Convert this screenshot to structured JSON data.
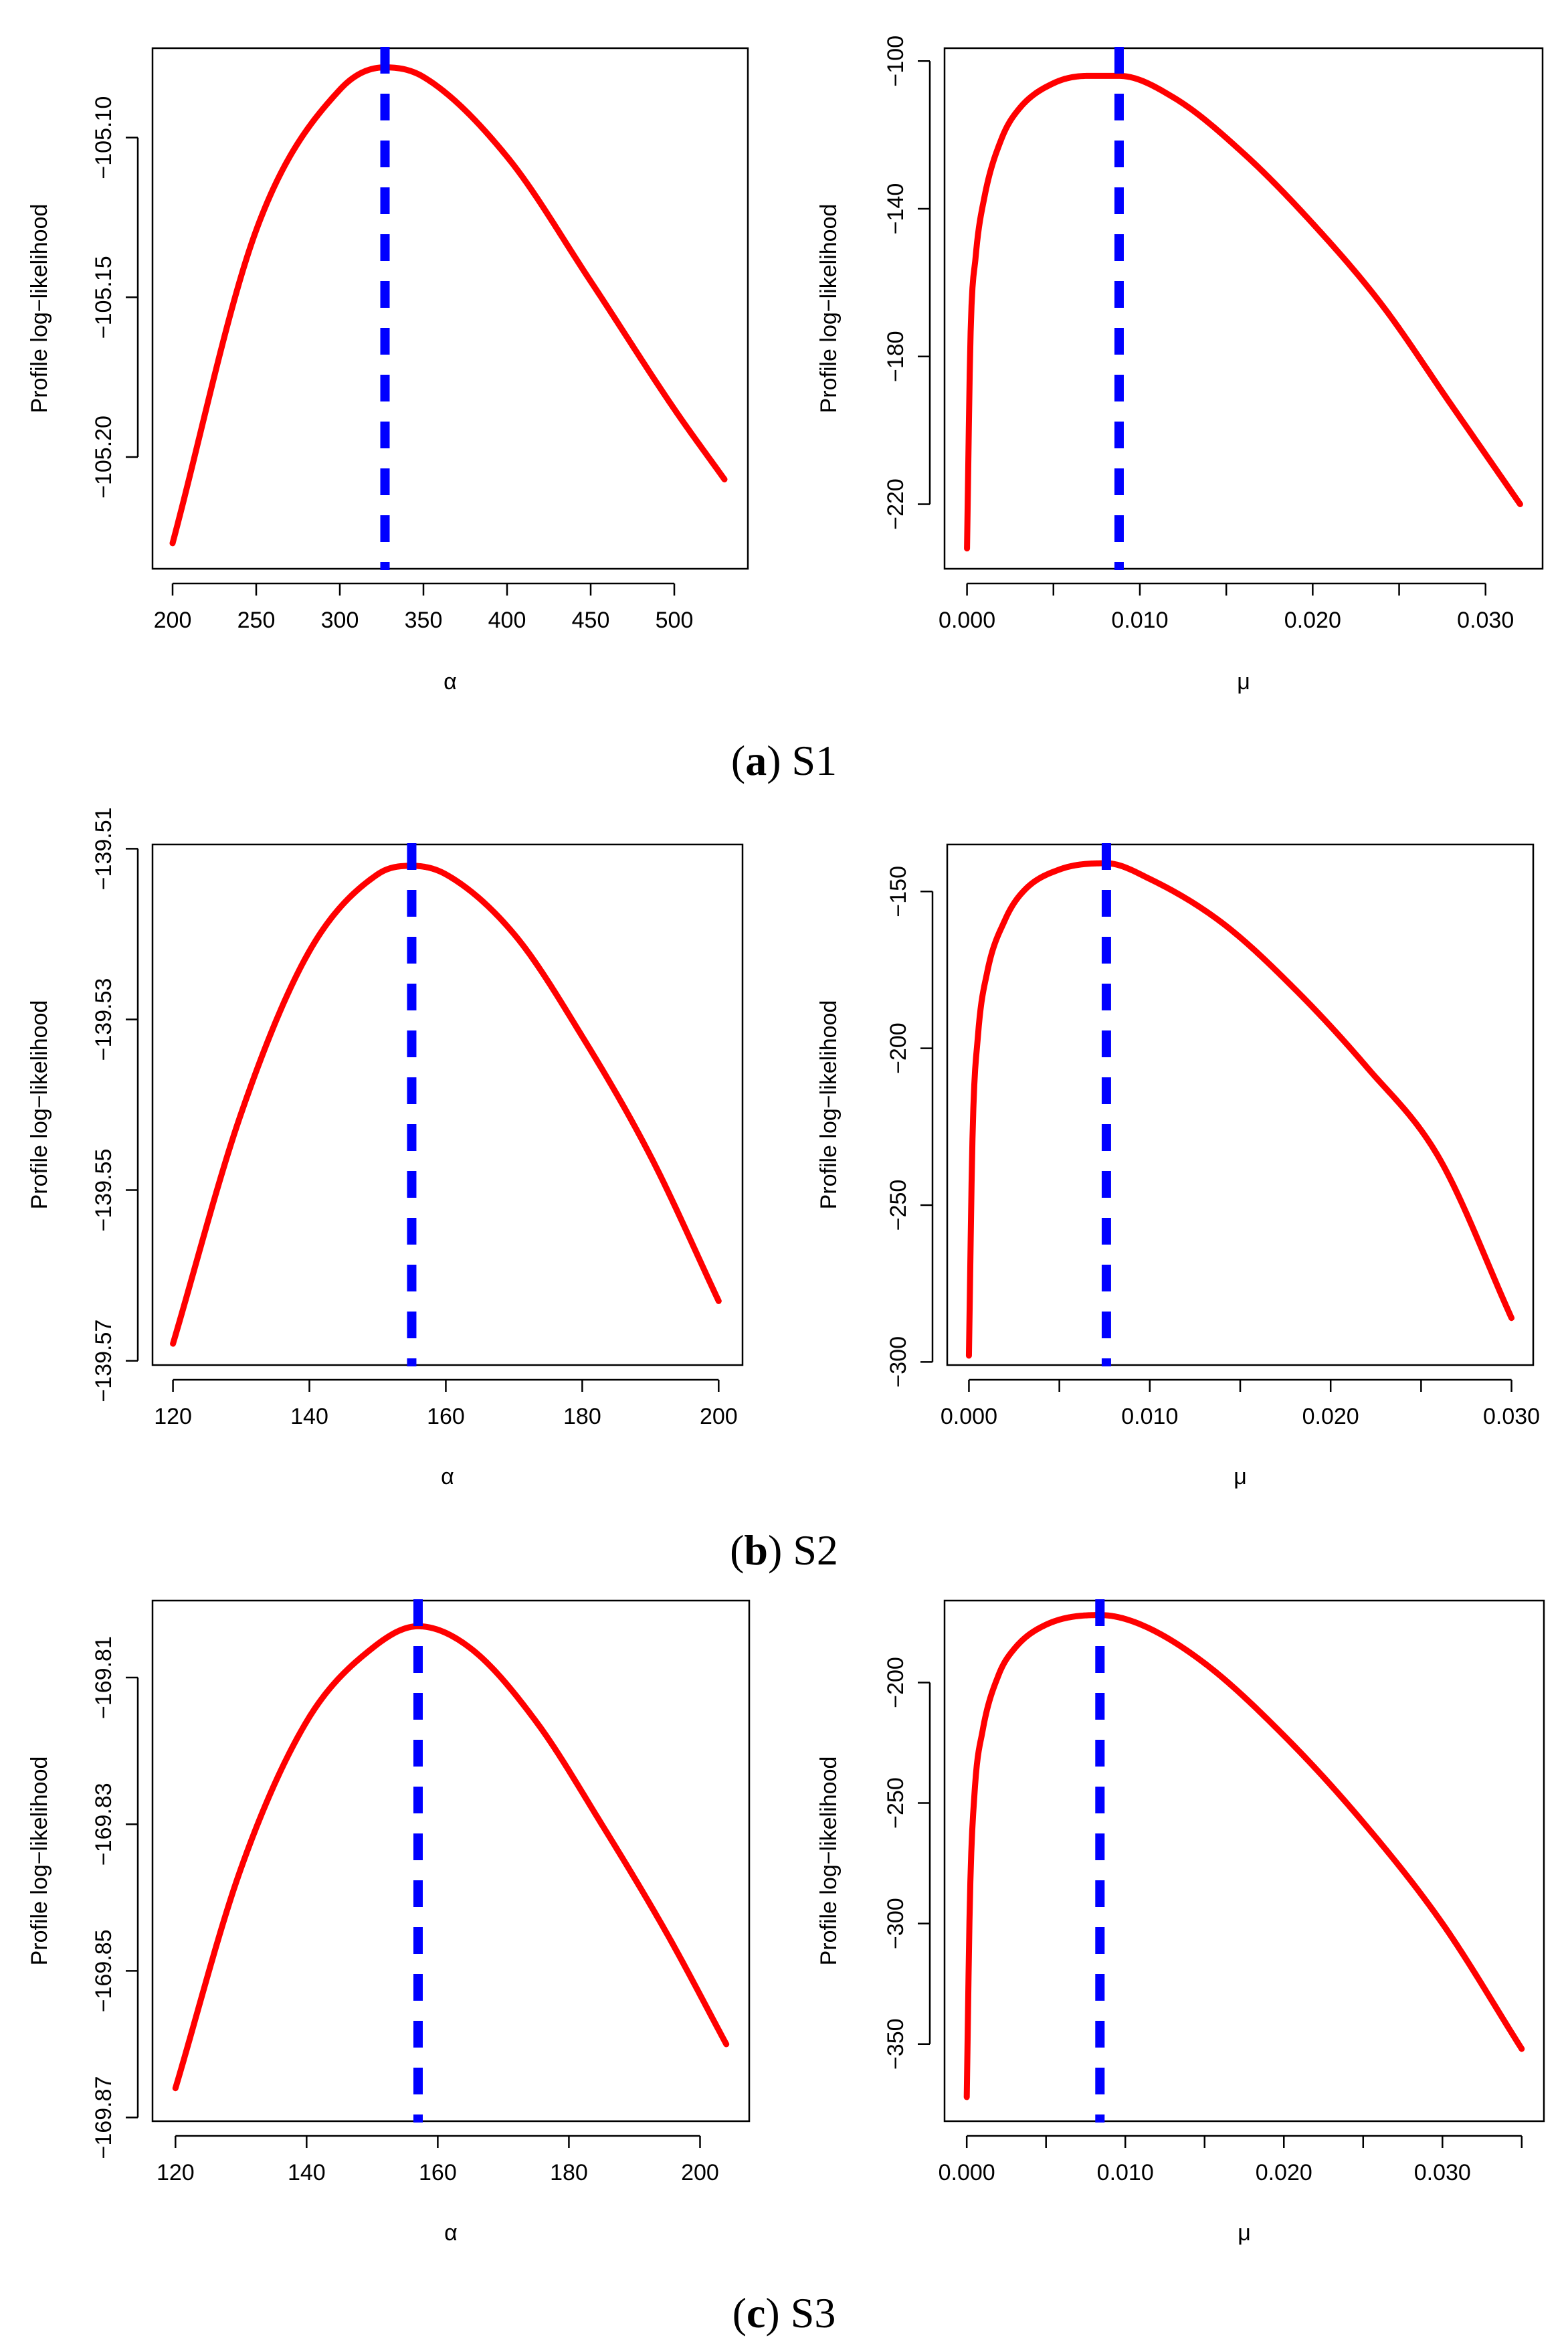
{
  "colors": {
    "curve": "#ff0000",
    "mle_line": "#0000ff",
    "axis": "#000000"
  },
  "captions": [
    {
      "letter": "a",
      "label": "S1"
    },
    {
      "letter": "b",
      "label": "S2"
    },
    {
      "letter": "c",
      "label": "S3"
    }
  ],
  "chart_data": [
    {
      "id": "S1-alpha",
      "type": "line",
      "xlabel": "α",
      "ylabel": "Profile log−likelihood",
      "xlim": [
        188,
        544
      ],
      "ylim": [
        -105.235,
        -105.072
      ],
      "xticks": [
        200,
        250,
        300,
        350,
        400,
        450,
        500
      ],
      "xtick_labels": [
        "200",
        "250",
        "300",
        "350",
        "400",
        "450",
        "500"
      ],
      "yticks": [
        -105.1,
        -105.15,
        -105.2
      ],
      "ytick_labels": [
        "−105.10",
        "−105.15",
        "−105.20"
      ],
      "mle": 327,
      "curve": {
        "x": [
          200,
          250,
          300,
          327,
          350,
          400,
          450,
          500,
          530
        ],
        "y": [
          -105.227,
          -105.129,
          -105.085,
          -105.078,
          -105.081,
          -105.106,
          -105.145,
          -105.185,
          -105.207
        ]
      }
    },
    {
      "id": "S1-mu",
      "type": "line",
      "xlabel": "μ",
      "ylabel": "Profile log−likelihood",
      "xlim": [
        -0.0013,
        0.0333
      ],
      "ylim": [
        -237.5,
        -96.5
      ],
      "xticks": [
        0.0,
        0.005,
        0.01,
        0.015,
        0.02,
        0.025,
        0.03
      ],
      "xtick_labels": [
        "0.000",
        "",
        "0.010",
        "",
        "0.020",
        "",
        "0.030"
      ],
      "yticks": [
        -100,
        -140,
        -180,
        -220
      ],
      "ytick_labels": [
        "−100",
        "−140",
        "−180",
        "−220"
      ],
      "mle": 0.0088,
      "curve": {
        "x": [
          0.0,
          0.0002,
          0.0005,
          0.001,
          0.002,
          0.003,
          0.005,
          0.007,
          0.0088,
          0.012,
          0.016,
          0.02,
          0.024,
          0.028,
          0.032
        ],
        "y": [
          -232,
          -175,
          -153,
          -137,
          -121,
          -113,
          -106,
          -104,
          -104,
          -110,
          -125,
          -144,
          -166,
          -193,
          -220
        ]
      }
    },
    {
      "id": "S2-alpha",
      "type": "line",
      "xlabel": "α",
      "ylabel": "Profile log−likelihood",
      "xlim": [
        117,
        203.5
      ],
      "ylim": [
        -139.5705,
        -139.5095
      ],
      "xticks": [
        120,
        140,
        160,
        180,
        200
      ],
      "xtick_labels": [
        "120",
        "140",
        "160",
        "180",
        "200"
      ],
      "yticks": [
        -139.51,
        -139.53,
        -139.55,
        -139.57
      ],
      "ytick_labels": [
        "−139.51",
        "−139.53",
        "−139.55",
        "−139.57"
      ],
      "mle": 155,
      "curve": {
        "x": [
          120,
          130,
          140,
          150,
          155,
          160,
          170,
          180,
          190,
          200
        ],
        "y": [
          -139.568,
          -139.541,
          -139.522,
          -139.513,
          -139.512,
          -139.513,
          -139.52,
          -139.532,
          -139.546,
          -139.563
        ]
      }
    },
    {
      "id": "S2-mu",
      "type": "line",
      "xlabel": "μ",
      "ylabel": "Profile log−likelihood",
      "xlim": [
        -0.0012,
        0.0312
      ],
      "ylim": [
        -301,
        -135
      ],
      "xticks": [
        0.0,
        0.005,
        0.01,
        0.015,
        0.02,
        0.025,
        0.03
      ],
      "xtick_labels": [
        "0.000",
        "",
        "0.010",
        "",
        "0.020",
        "",
        "0.030"
      ],
      "yticks": [
        -150,
        -200,
        -250,
        -300
      ],
      "ytick_labels": [
        "−150",
        "−200",
        "−250",
        "−300"
      ],
      "mle": 0.0076,
      "curve": {
        "x": [
          0.0,
          0.0002,
          0.0005,
          0.001,
          0.002,
          0.003,
          0.005,
          0.0076,
          0.01,
          0.014,
          0.018,
          0.022,
          0.026,
          0.03
        ],
        "y": [
          -298,
          -228,
          -196,
          -176,
          -159,
          -150,
          -143,
          -141,
          -146,
          -160,
          -181,
          -206,
          -235,
          -286
        ]
      }
    },
    {
      "id": "S3-alpha",
      "type": "line",
      "xlabel": "α",
      "ylabel": "Profile log−likelihood",
      "xlim": [
        116.5,
        207.5
      ],
      "ylim": [
        -169.8705,
        -169.7995
      ],
      "xticks": [
        120,
        140,
        160,
        180,
        200
      ],
      "xtick_labels": [
        "120",
        "140",
        "160",
        "180",
        "200"
      ],
      "yticks": [
        -169.81,
        -169.83,
        -169.85,
        -169.87
      ],
      "ytick_labels": [
        "−169.81",
        "−169.83",
        "−169.85",
        "−169.87"
      ],
      "mle": 157,
      "curve": {
        "x": [
          120,
          130,
          140,
          150,
          157,
          165,
          175,
          185,
          195,
          204
        ],
        "y": [
          -169.866,
          -169.836,
          -169.816,
          -169.806,
          -169.803,
          -169.806,
          -169.816,
          -169.83,
          -169.845,
          -169.86
        ]
      }
    },
    {
      "id": "S3-mu",
      "type": "line",
      "xlabel": "μ",
      "ylabel": "Profile log−likelihood",
      "xlim": [
        -0.0014,
        0.0364
      ],
      "ylim": [
        -382,
        -166
      ],
      "xticks": [
        0.0,
        0.005,
        0.01,
        0.015,
        0.02,
        0.025,
        0.03,
        0.035
      ],
      "xtick_labels": [
        "0.000",
        "",
        "0.010",
        "",
        "0.020",
        "",
        "0.030",
        ""
      ],
      "yticks": [
        -200,
        -250,
        -300,
        -350
      ],
      "ytick_labels": [
        "−200",
        "−250",
        "−300",
        "−350"
      ],
      "mle": 0.0084,
      "curve": {
        "x": [
          0.0,
          0.0002,
          0.0005,
          0.001,
          0.002,
          0.003,
          0.005,
          0.0084,
          0.011,
          0.015,
          0.02,
          0.025,
          0.03,
          0.035
        ],
        "y": [
          -372,
          -290,
          -245,
          -220,
          -197,
          -186,
          -176,
          -172,
          -176,
          -192,
          -222,
          -258,
          -300,
          -352
        ]
      }
    }
  ]
}
